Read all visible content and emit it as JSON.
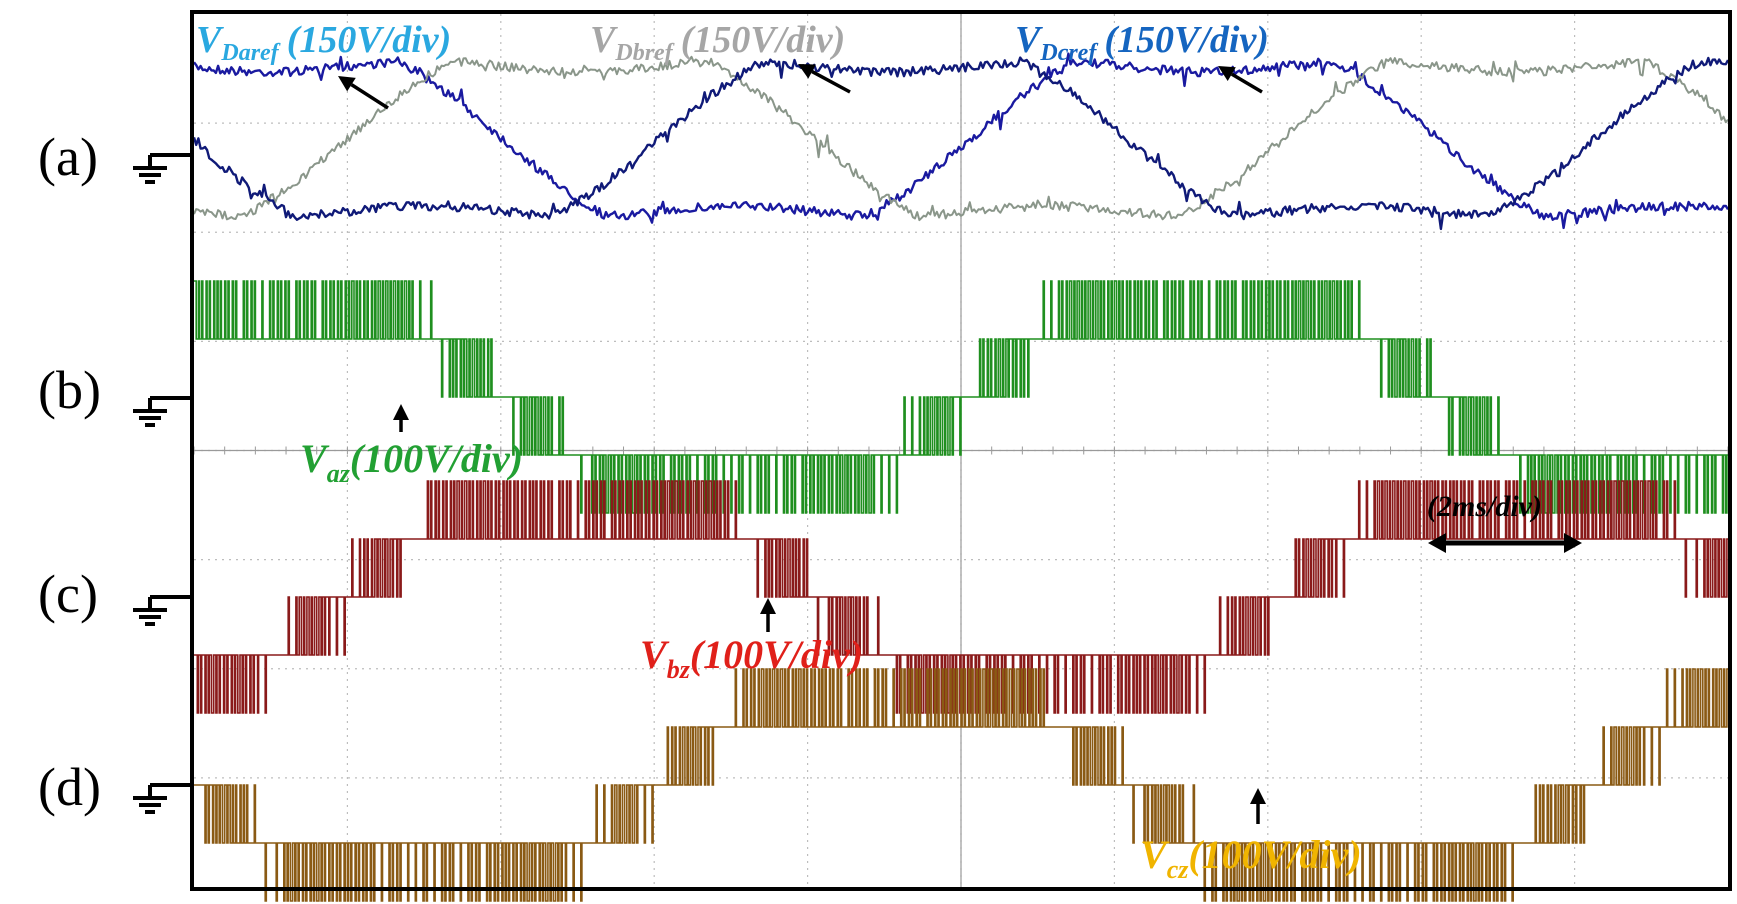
{
  "chart_data": {
    "type": "line",
    "panels": [
      {
        "id": "a",
        "label": "(a)",
        "series": [
          {
            "name": "V_Daref",
            "name_main": "V",
            "name_sub": "Daref",
            "scale": "(150V/div)",
            "color": "#1a1aa0",
            "label_color": "#2aa8e0"
          },
          {
            "name": "V_Dbref",
            "name_main": "V",
            "name_sub": "Dbref",
            "scale": "(150V/div)",
            "color": "#8a968a",
            "label_color": "#a6a6a6"
          },
          {
            "name": "V_Dcref",
            "name_main": "V",
            "name_sub": "Dcref",
            "scale": "(150V/div)",
            "color": "#101a78",
            "label_color": "#1565c0"
          }
        ]
      },
      {
        "id": "b",
        "label": "(b)",
        "series": [
          {
            "name": "V_az",
            "name_main": "V",
            "name_sub": "az",
            "scale": "(100V/div)",
            "color": "#1f8f1f",
            "label_color": "#22a033"
          }
        ]
      },
      {
        "id": "c",
        "label": "(c)",
        "series": [
          {
            "name": "V_bz",
            "name_main": "V",
            "name_sub": "bz",
            "scale": "(100V/div)",
            "color": "#8a1a1a",
            "label_color": "#e0201a"
          }
        ]
      },
      {
        "id": "d",
        "label": "(d)",
        "series": [
          {
            "name": "V_cz",
            "name_main": "V",
            "name_sub": "cz",
            "scale": "(100V/div)",
            "color": "#8a5a14",
            "label_color": "#f0b400"
          }
        ]
      }
    ],
    "time_scale": "(2ms/div)",
    "grid": true,
    "divisions_x": 10,
    "divisions_y": 8
  }
}
